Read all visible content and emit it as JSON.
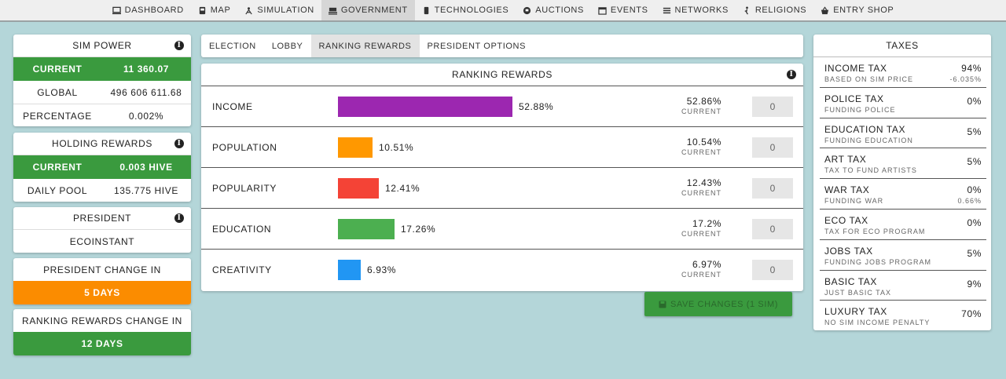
{
  "nav": [
    {
      "label": "DASHBOARD",
      "icon": "monitor-icon"
    },
    {
      "label": "MAP",
      "icon": "map-icon"
    },
    {
      "label": "SIMULATION",
      "icon": "atom-icon"
    },
    {
      "label": "GOVERNMENT",
      "icon": "government-icon",
      "active": true
    },
    {
      "label": "TECHNOLOGIES",
      "icon": "chip-icon"
    },
    {
      "label": "AUCTIONS",
      "icon": "gavel-icon"
    },
    {
      "label": "EVENTS",
      "icon": "calendar-icon"
    },
    {
      "label": "NETWORKS",
      "icon": "list-icon"
    },
    {
      "label": "RELIGIONS",
      "icon": "pray-icon"
    },
    {
      "label": "ENTRY SHOP",
      "icon": "basket-icon"
    }
  ],
  "sim_power": {
    "title": "SIM POWER",
    "current_label": "CURRENT",
    "current_value": "11 360.07",
    "global_label": "GLOBAL",
    "global_value": "496 606 611.68",
    "percentage_label": "PERCENTAGE",
    "percentage_value": "0.002%"
  },
  "holding_rewards": {
    "title": "HOLDING REWARDS",
    "current_label": "CURRENT",
    "current_value": "0.003 HIVE",
    "daily_label": "DAILY POOL",
    "daily_value": "135.775 HIVE"
  },
  "president": {
    "title": "PRESIDENT",
    "name": "ECOINSTANT"
  },
  "president_change": {
    "title": "PRESIDENT CHANGE IN",
    "value": "5 DAYS"
  },
  "ranking_change": {
    "title": "RANKING REWARDS CHANGE IN",
    "value": "12 DAYS"
  },
  "tabs": [
    "ELECTION",
    "LOBBY",
    "RANKING REWARDS",
    "PRESIDENT OPTIONS"
  ],
  "active_tab": 2,
  "ranking": {
    "title": "RANKING REWARDS",
    "current_label": "CURRENT",
    "rows": [
      {
        "label": "INCOME",
        "pct": "52.88%",
        "fraction": 0.5288,
        "color": "#9c27b0",
        "current": "52.86%",
        "input": "0"
      },
      {
        "label": "POPULATION",
        "pct": "10.51%",
        "fraction": 0.1051,
        "color": "#ff9800",
        "current": "10.54%",
        "input": "0"
      },
      {
        "label": "POPULARITY",
        "pct": "12.41%",
        "fraction": 0.1241,
        "color": "#f44336",
        "current": "12.43%",
        "input": "0"
      },
      {
        "label": "EDUCATION",
        "pct": "17.26%",
        "fraction": 0.1726,
        "color": "#4caf50",
        "current": "17.2%",
        "input": "0"
      },
      {
        "label": "CREATIVITY",
        "pct": "6.93%",
        "fraction": 0.0693,
        "color": "#2196f3",
        "current": "6.97%",
        "input": "0"
      }
    ],
    "save_label": "SAVE CHANGES (1 SIM)"
  },
  "taxes": {
    "title": "TAXES",
    "rows": [
      {
        "name": "INCOME TAX",
        "sub": "BASED ON SIM PRICE",
        "value": "94%",
        "sub_value": "-6.035%"
      },
      {
        "name": "POLICE TAX",
        "sub": "FUNDING POLICE",
        "value": "0%"
      },
      {
        "name": "EDUCATION TAX",
        "sub": "FUNDING EDUCATION",
        "value": "5%"
      },
      {
        "name": "ART TAX",
        "sub": "TAX TO FUND ARTISTS",
        "value": "5%"
      },
      {
        "name": "WAR TAX",
        "sub": "FUNDING WAR",
        "value": "0%",
        "sub_value": "0.66%"
      },
      {
        "name": "ECO TAX",
        "sub": "TAX FOR ECO PROGRAM",
        "value": "0%"
      },
      {
        "name": "JOBS TAX",
        "sub": "FUNDING JOBS PROGRAM",
        "value": "5%"
      },
      {
        "name": "BASIC TAX",
        "sub": "JUST BASIC TAX",
        "value": "9%"
      },
      {
        "name": "LUXURY TAX",
        "sub": "NO SIM INCOME PENALTY",
        "value": "70%"
      }
    ]
  }
}
